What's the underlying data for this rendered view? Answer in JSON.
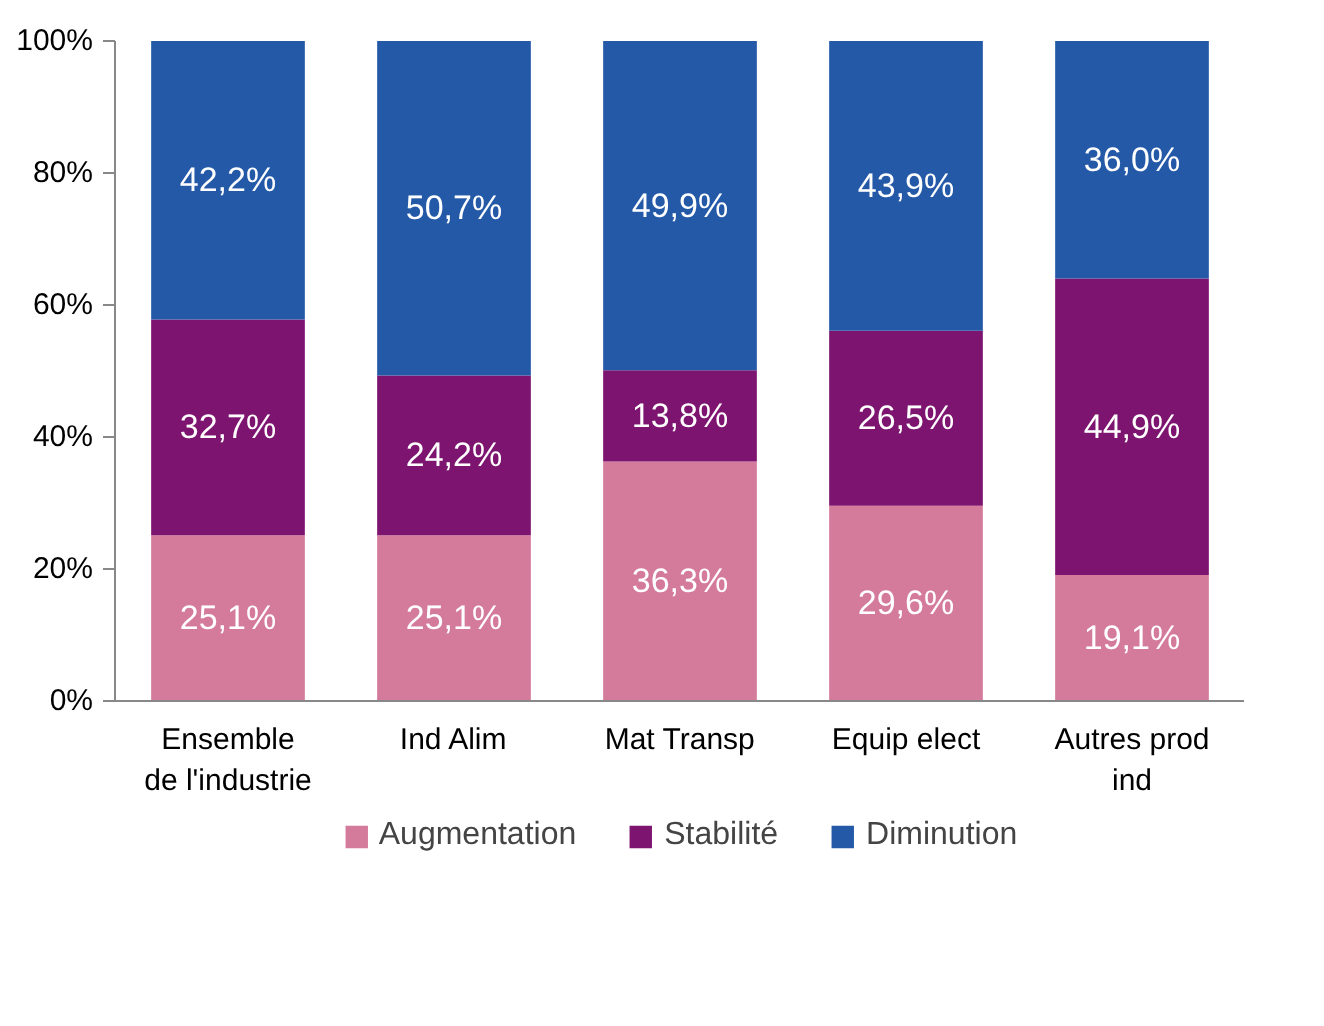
{
  "chart_data": {
    "type": "bar",
    "stacked": true,
    "categories": [
      "Ensemble\nde l'industrie",
      "Ind Alim",
      "Mat Transp",
      "Equip elect",
      "Autres prod\nind"
    ],
    "series": [
      {
        "name": "Augmentation",
        "color": "#d47a9b",
        "values": [
          25.1,
          25.1,
          36.3,
          29.6,
          19.1
        ],
        "value_labels": [
          "25,1%",
          "25,1%",
          "36,3%",
          "29,6%",
          "19,1%"
        ]
      },
      {
        "name": "Stabilité",
        "color": "#7d146f",
        "values": [
          32.7,
          24.2,
          13.8,
          26.5,
          44.9
        ],
        "value_labels": [
          "32,7%",
          "24,2%",
          "13,8%",
          "26,5%",
          "44,9%"
        ]
      },
      {
        "name": "Diminution",
        "color": "#2459a8",
        "values": [
          42.2,
          50.7,
          49.9,
          43.9,
          36.0
        ],
        "value_labels": [
          "42,2%",
          "50,7%",
          "49,9%",
          "43,9%",
          "36,0%"
        ]
      }
    ],
    "ylim": [
      0,
      100
    ],
    "yticks": [
      {
        "value": 0,
        "label": "0%"
      },
      {
        "value": 20,
        "label": "20%"
      },
      {
        "value": 40,
        "label": "40%"
      },
      {
        "value": 60,
        "label": "60%"
      },
      {
        "value": 80,
        "label": "80%"
      },
      {
        "value": 100,
        "label": "100%"
      }
    ],
    "grid": false,
    "legend": "bottom"
  }
}
